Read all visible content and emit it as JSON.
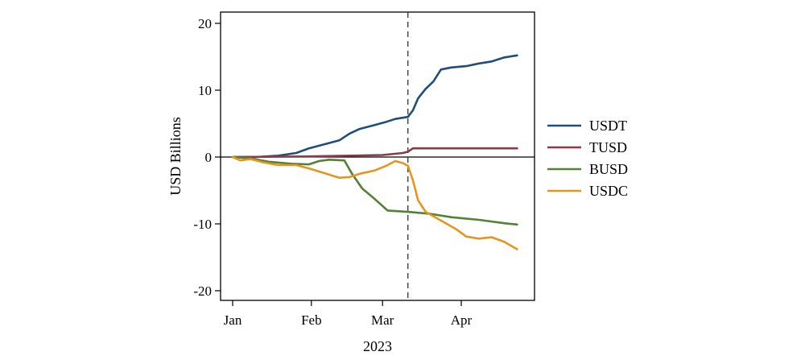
{
  "chart_data": {
    "type": "line",
    "title": "",
    "xlabel": "2023",
    "ylabel": "USD Billions",
    "xlim": [
      "2023-01-01",
      "2023-04-30"
    ],
    "ylim": [
      -22,
      20.5
    ],
    "x_ticks": [
      {
        "date": "2023-01-01",
        "label": "Jan"
      },
      {
        "date": "2023-02-01",
        "label": "Feb"
      },
      {
        "date": "2023-03-01",
        "label": "Mar"
      },
      {
        "date": "2023-04-01",
        "label": "Apr"
      }
    ],
    "y_ticks": [
      20,
      10,
      0,
      -10,
      -20
    ],
    "grid": false,
    "zero_line": true,
    "event_line": {
      "date": "2023-03-11",
      "style": "dashed"
    },
    "legend_position": "right",
    "series": [
      {
        "name": "USDT",
        "color": "#1f4e79",
        "points": [
          [
            "2023-01-01",
            0
          ],
          [
            "2023-01-10",
            0
          ],
          [
            "2023-01-19",
            0.2
          ],
          [
            "2023-01-26",
            0.6
          ],
          [
            "2023-01-31",
            1.3
          ],
          [
            "2023-02-05",
            1.8
          ],
          [
            "2023-02-12",
            2.5
          ],
          [
            "2023-02-16",
            3.5
          ],
          [
            "2023-02-20",
            4.2
          ],
          [
            "2023-02-25",
            4.7
          ],
          [
            "2023-03-02",
            5.2
          ],
          [
            "2023-03-06",
            5.7
          ],
          [
            "2023-03-11",
            6.0
          ],
          [
            "2023-03-13",
            7.0
          ],
          [
            "2023-03-15",
            8.8
          ],
          [
            "2023-03-18",
            10.2
          ],
          [
            "2023-03-21",
            11.3
          ],
          [
            "2023-03-24",
            13.1
          ],
          [
            "2023-03-28",
            13.4
          ],
          [
            "2023-04-03",
            13.6
          ],
          [
            "2023-04-08",
            14.0
          ],
          [
            "2023-04-13",
            14.3
          ],
          [
            "2023-04-18",
            14.9
          ],
          [
            "2023-04-23",
            15.2
          ]
        ]
      },
      {
        "name": "TUSD",
        "color": "#8b3a4a",
        "points": [
          [
            "2023-01-01",
            0
          ],
          [
            "2023-02-01",
            0.1
          ],
          [
            "2023-03-01",
            0.3
          ],
          [
            "2023-03-09",
            0.6
          ],
          [
            "2023-03-11",
            0.8
          ],
          [
            "2023-03-13",
            1.3
          ],
          [
            "2023-04-23",
            1.3
          ]
        ]
      },
      {
        "name": "BUSD",
        "color": "#548235",
        "points": [
          [
            "2023-01-01",
            0
          ],
          [
            "2023-01-08",
            -0.2
          ],
          [
            "2023-01-15",
            -0.7
          ],
          [
            "2023-01-24",
            -1.0
          ],
          [
            "2023-01-31",
            -1.1
          ],
          [
            "2023-02-04",
            -0.6
          ],
          [
            "2023-02-08",
            -0.4
          ],
          [
            "2023-02-14",
            -0.5
          ],
          [
            "2023-02-17",
            -2.5
          ],
          [
            "2023-02-21",
            -4.7
          ],
          [
            "2023-02-26",
            -6.3
          ],
          [
            "2023-03-03",
            -8.0
          ],
          [
            "2023-03-11",
            -8.2
          ],
          [
            "2023-03-20",
            -8.5
          ],
          [
            "2023-03-28",
            -9.0
          ],
          [
            "2023-04-08",
            -9.4
          ],
          [
            "2023-04-18",
            -9.9
          ],
          [
            "2023-04-23",
            -10.1
          ]
        ]
      },
      {
        "name": "USDC",
        "color": "#e69520",
        "points": [
          [
            "2023-01-01",
            0
          ],
          [
            "2023-01-04",
            -0.5
          ],
          [
            "2023-01-08",
            -0.3
          ],
          [
            "2023-01-13",
            -0.8
          ],
          [
            "2023-01-19",
            -1.2
          ],
          [
            "2023-01-26",
            -1.2
          ],
          [
            "2023-01-31",
            -1.7
          ],
          [
            "2023-02-06",
            -2.4
          ],
          [
            "2023-02-12",
            -3.1
          ],
          [
            "2023-02-16",
            -3.0
          ],
          [
            "2023-02-20",
            -2.5
          ],
          [
            "2023-02-26",
            -2.0
          ],
          [
            "2023-03-02",
            -1.4
          ],
          [
            "2023-03-06",
            -0.6
          ],
          [
            "2023-03-09",
            -0.9
          ],
          [
            "2023-03-11",
            -1.3
          ],
          [
            "2023-03-13",
            -3.5
          ],
          [
            "2023-03-15",
            -6.5
          ],
          [
            "2023-03-18",
            -8.2
          ],
          [
            "2023-03-24",
            -9.5
          ],
          [
            "2023-03-30",
            -10.8
          ],
          [
            "2023-04-03",
            -11.9
          ],
          [
            "2023-04-08",
            -12.2
          ],
          [
            "2023-04-13",
            -12.0
          ],
          [
            "2023-04-18",
            -12.7
          ],
          [
            "2023-04-23",
            -13.8
          ]
        ]
      }
    ]
  }
}
